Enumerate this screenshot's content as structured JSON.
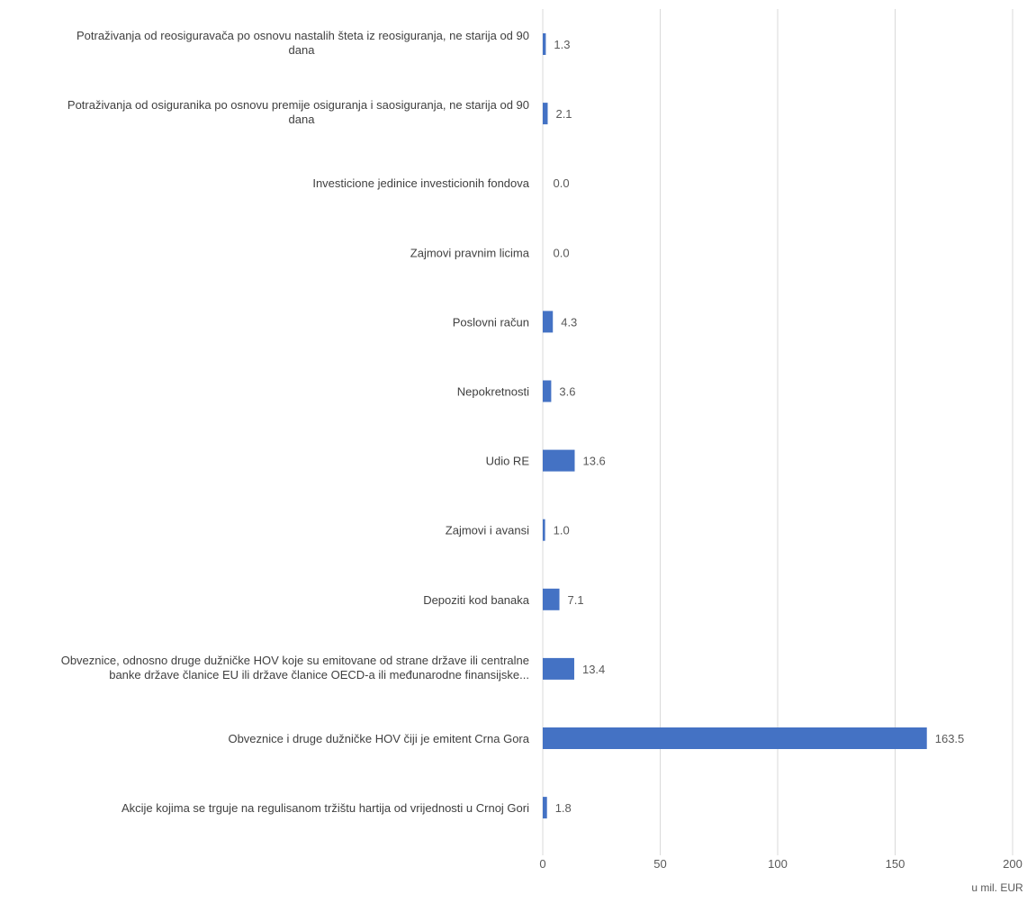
{
  "chart_data": {
    "type": "bar",
    "orientation": "horizontal",
    "categories": [
      [
        "Potraživanja od reosiguravača po osnovu nastalih šteta iz reosiguranja, ne starija od 90",
        "dana"
      ],
      [
        "Potraživanja od osiguranika po osnovu premije osiguranja i saosiguranja, ne starija od 90",
        "dana"
      ],
      [
        "Investicione jedinice investicionih fondova"
      ],
      [
        "Zajmovi pravnim licima"
      ],
      [
        "Poslovni račun"
      ],
      [
        "Nepokretnosti"
      ],
      [
        "Udio RE"
      ],
      [
        "Zajmovi i avansi"
      ],
      [
        "Depoziti kod banaka"
      ],
      [
        "Obveznice, odnosno druge dužničke HOV koje su emitovane od strane države ili centralne",
        "banke države članice EU ili države članice OECD-a ili međunarodne finansijske..."
      ],
      [
        "Obveznice i druge dužničke HOV čiji je emitent Crna Gora"
      ],
      [
        "Akcije kojima se trguje na regulisanom tržištu hartija od vrijednosti u Crnoj Gori"
      ]
    ],
    "values": [
      1.3,
      2.1,
      0.0,
      0.0,
      4.3,
      3.6,
      13.6,
      1.0,
      7.1,
      13.4,
      163.5,
      1.8
    ],
    "value_labels": [
      "1.3",
      "2.1",
      "0.0",
      "0.0",
      "4.3",
      "3.6",
      "13.6",
      "1.0",
      "7.1",
      "13.4",
      "163.5",
      "1.8"
    ],
    "xlim": [
      0,
      200
    ],
    "xticks": [
      0,
      50,
      100,
      150,
      200
    ],
    "xtick_labels": [
      "0",
      "50",
      "100",
      "150",
      "200"
    ],
    "unit_label": "u mil. EUR",
    "grid": "vertical",
    "legend": "none",
    "bar_color": "#4472C4",
    "grid_color": "#d9d9d9",
    "text_color": "#404040"
  }
}
